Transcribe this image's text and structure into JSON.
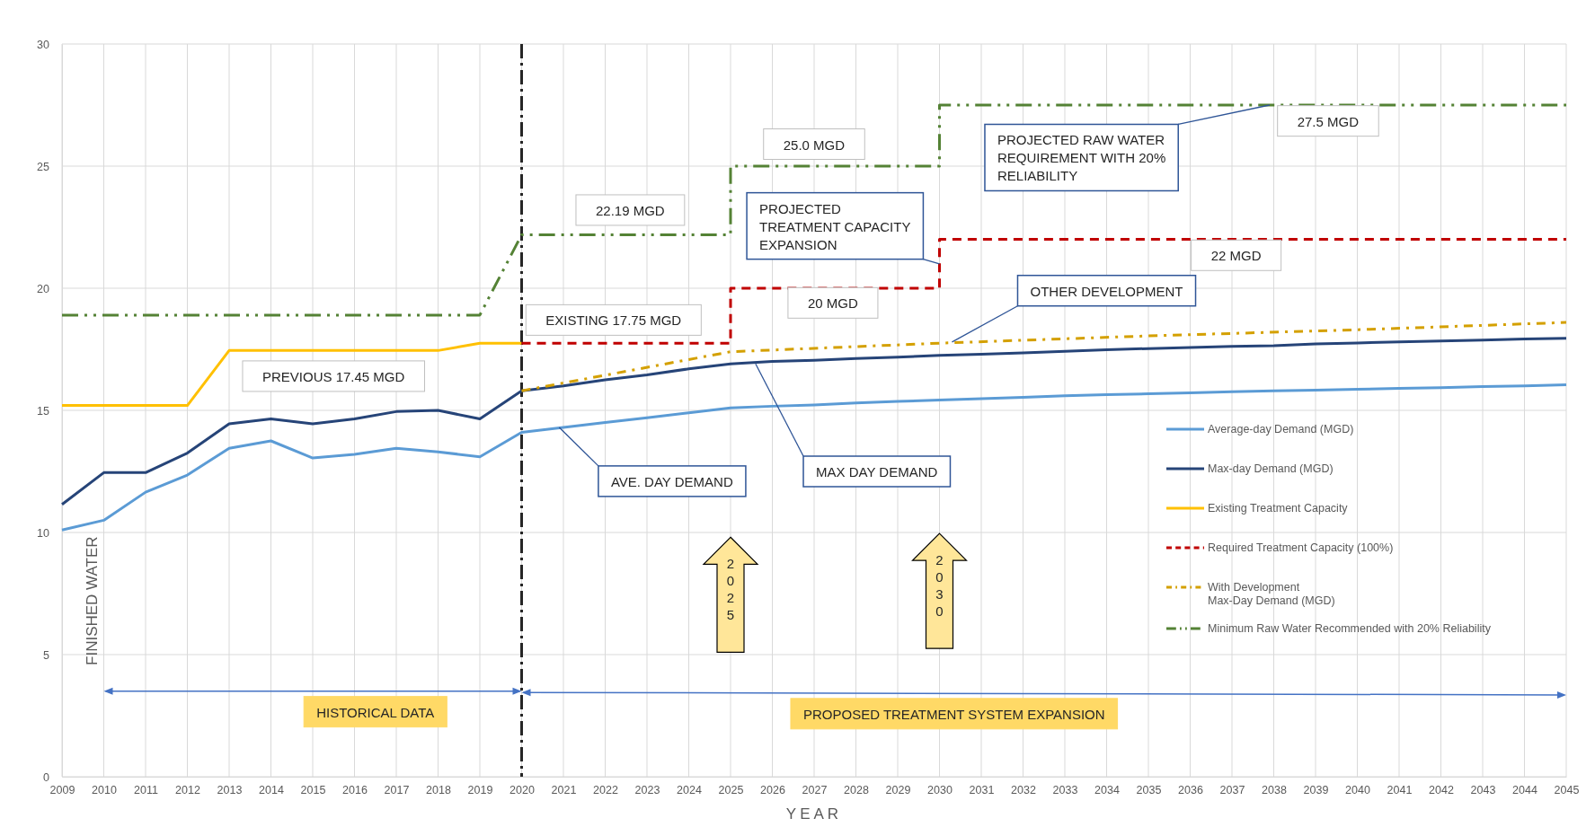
{
  "chart_data": {
    "type": "line",
    "xlabel": "YEAR",
    "ylabel": "FINISHED WATER",
    "x": [
      2009,
      2010,
      2011,
      2012,
      2013,
      2014,
      2015,
      2016,
      2017,
      2018,
      2019,
      2020,
      2021,
      2022,
      2023,
      2024,
      2025,
      2026,
      2027,
      2028,
      2029,
      2030,
      2031,
      2032,
      2033,
      2034,
      2035,
      2036,
      2037,
      2038,
      2039,
      2040,
      2041,
      2042,
      2043,
      2044,
      2045
    ],
    "series": [
      {
        "name": "Average-day Demand (MGD)",
        "color": "#5b9bd5",
        "line_style": "solid",
        "values": [
          10.1,
          10.5,
          11.65,
          12.35,
          13.45,
          13.75,
          13.05,
          13.2,
          13.45,
          13.3,
          13.1,
          14.1,
          14.3,
          14.5,
          14.7,
          14.9,
          15.1,
          15.17,
          15.22,
          15.3,
          15.37,
          15.42,
          15.48,
          15.53,
          15.6,
          15.64,
          15.68,
          15.72,
          15.76,
          15.8,
          15.83,
          15.86,
          15.9,
          15.93,
          15.97,
          16.0,
          16.05
        ]
      },
      {
        "name": "Max-day Demand (MGD)",
        "color": "#264478",
        "line_style": "solid",
        "values": [
          11.15,
          12.45,
          12.45,
          13.25,
          14.45,
          14.65,
          14.45,
          14.65,
          14.95,
          15.0,
          14.65,
          15.8,
          16.0,
          16.25,
          16.45,
          16.7,
          16.9,
          17.0,
          17.05,
          17.12,
          17.18,
          17.25,
          17.3,
          17.35,
          17.42,
          17.48,
          17.53,
          17.57,
          17.62,
          17.65,
          17.72,
          17.76,
          17.8,
          17.84,
          17.88,
          17.92,
          17.95
        ]
      },
      {
        "name": "Existing Treatment Capacity",
        "color": "#ffc000",
        "line_style": "solid",
        "x": [
          2009,
          2010,
          2011,
          2012,
          2013,
          2014,
          2015,
          2016,
          2017,
          2018,
          2019,
          2020
        ],
        "values": [
          15.2,
          15.2,
          15.2,
          15.2,
          17.45,
          17.45,
          17.45,
          17.45,
          17.45,
          17.45,
          17.75,
          17.75
        ]
      },
      {
        "name": "Required Treatment Capacity (100%)",
        "color": "#c00000",
        "line_style": "dashed",
        "x": [
          2020,
          2025,
          2025,
          2030,
          2030,
          2045
        ],
        "values": [
          17.75,
          17.75,
          20,
          20,
          22,
          22
        ]
      },
      {
        "name": "With Development\nMax-Day Demand (MGD)",
        "color": "#d4a000",
        "line_style": "dashed",
        "x": [
          2020,
          2025,
          2030,
          2035,
          2040,
          2045
        ],
        "values": [
          15.8,
          17.4,
          17.75,
          18.05,
          18.3,
          18.6
        ]
      },
      {
        "name": "Minimum Raw Water Recommended with 20% Reliability",
        "color": "#548235",
        "line_style": "dashed",
        "x": [
          2009,
          2019,
          2020,
          2025,
          2025,
          2030,
          2030,
          2045
        ],
        "values": [
          18.9,
          18.9,
          22.19,
          22.19,
          25,
          25,
          27.5,
          27.5
        ]
      }
    ],
    "xlim": [
      2009,
      2045
    ],
    "xticks": [
      2009,
      2010,
      2011,
      2012,
      2013,
      2014,
      2015,
      2016,
      2017,
      2018,
      2019,
      2020,
      2021,
      2022,
      2023,
      2024,
      2025,
      2026,
      2027,
      2028,
      2029,
      2030,
      2031,
      2032,
      2033,
      2034,
      2035,
      2036,
      2037,
      2038,
      2039,
      2040,
      2041,
      2042,
      2043,
      2044,
      2045
    ],
    "ylim": [
      0,
      30
    ],
    "yticks": [
      0,
      5,
      10,
      15,
      20,
      25,
      30
    ],
    "grid": true,
    "legend": "right",
    "marker": "none",
    "ref_lines": [
      {
        "axis": "x",
        "value": 2020,
        "color": "#262626",
        "line_style": "dashed"
      }
    ],
    "annotations": [
      "PREVIOUS 17.45 MGD",
      "EXISTING 17.75 MGD",
      "22.19 MGD",
      "25.0 MGD",
      "27.5 MGD",
      "20 MGD",
      "22 MGD",
      {
        "text": "PROJECTED TREATMENT CAPACITY EXPANSION",
        "x": 2030,
        "y": 21
      },
      {
        "text": "PROJECTED RAW WATER REQUIREMENT WITH 20% RELIABILITY",
        "x": 2037.9,
        "y": 27.5
      },
      {
        "text": "OTHER DEVELOPMENT",
        "x": 2030.3,
        "y": 17.8
      },
      {
        "text": "AVE. DAY DEMAND",
        "x": 2020.9,
        "y": 14.3
      },
      {
        "text": "MAX DAY DEMAND",
        "x": 2025.6,
        "y": 16.9
      },
      "HISTORICAL DATA",
      "PROPOSED TREATMENT SYSTEM EXPANSION",
      "2025",
      "2030"
    ]
  }
}
